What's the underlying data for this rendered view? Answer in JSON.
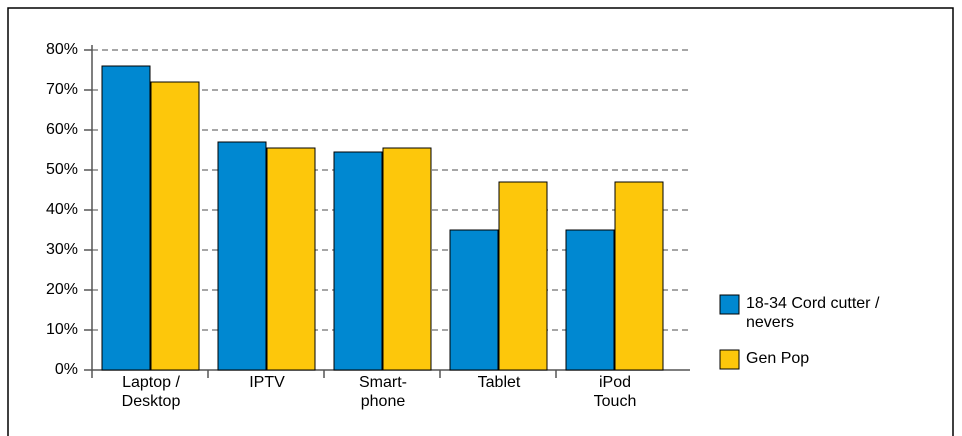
{
  "chart_data": {
    "type": "bar",
    "categories": [
      "Laptop /\nDesktop",
      "IPTV",
      "Smart-\nphone",
      "Tablet",
      "iPod\nTouch"
    ],
    "series": [
      {
        "name": "18-34 Cord cutter /\nnevers",
        "color": "#0088d1",
        "values": [
          76,
          57,
          54.5,
          35,
          35
        ]
      },
      {
        "name": "Gen Pop",
        "color": "#fdc70b",
        "values": [
          72,
          55.5,
          55.5,
          47,
          47
        ]
      }
    ],
    "ylim": [
      0,
      80
    ],
    "yticks": [
      {
        "value": 0,
        "label": "0%"
      },
      {
        "value": 10,
        "label": "10%"
      },
      {
        "value": 20,
        "label": "20%"
      },
      {
        "value": 30,
        "label": "30%"
      },
      {
        "value": 40,
        "label": "40%"
      },
      {
        "value": 50,
        "label": "50%"
      },
      {
        "value": 60,
        "label": "60%"
      },
      {
        "value": 70,
        "label": "70%"
      },
      {
        "value": 80,
        "label": "80%"
      }
    ],
    "grid": true,
    "legend": "right"
  }
}
